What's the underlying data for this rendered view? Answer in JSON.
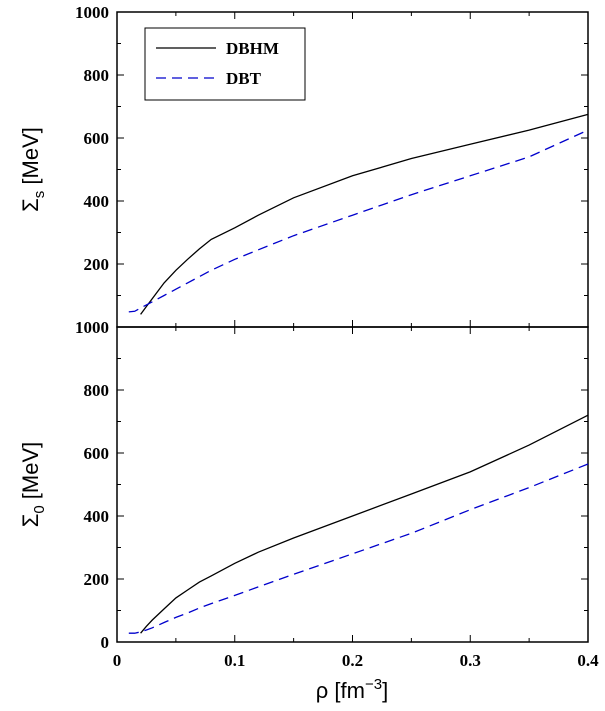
{
  "chart_data": {
    "type": "line",
    "legend_placement": "top-left",
    "x": [
      0.01,
      0.015,
      0.02,
      0.025,
      0.03,
      0.04,
      0.05,
      0.06,
      0.07,
      0.08,
      0.1,
      0.12,
      0.15,
      0.2,
      0.25,
      0.3,
      0.35,
      0.4
    ],
    "x_ticks": [
      "0",
      "0.1",
      "0.2",
      "0.3",
      "0.4"
    ],
    "xlabel_main": "ρ [fm",
    "xlabel_sup": "−3",
    "xlabel_close": "]",
    "xlim": [
      0,
      0.4
    ],
    "legend": [
      "DBHM",
      "DBT"
    ],
    "panels": [
      {
        "ylabel_main": "Σ",
        "ylabel_sub": "s",
        "ylabel_unit": "[MeV]",
        "ylim": [
          0,
          1000
        ],
        "y_ticks": [
          "200",
          "400",
          "600",
          "800",
          "1000"
        ],
        "series": [
          {
            "name": "DBHM",
            "color": "#000000",
            "dash": "solid",
            "values": [
              null,
              null,
              40,
              65,
              90,
              140,
              180,
              215,
              248,
              278,
              315,
              355,
              410,
              480,
              535,
              580,
              625,
              675
            ]
          },
          {
            "name": "DBT",
            "color": "#0000cc",
            "dash": "dashed",
            "values": [
              48,
              50,
              60,
              70,
              80,
              100,
              120,
              140,
              160,
              180,
              215,
              245,
              290,
              355,
              420,
              480,
              540,
              625
            ]
          }
        ]
      },
      {
        "ylabel_main": "Σ",
        "ylabel_sub": "0",
        "ylabel_unit": "[MeV]",
        "ylim": [
          0,
          1000
        ],
        "y_ticks": [
          "0",
          "200",
          "400",
          "600",
          "800",
          "1000"
        ],
        "series": [
          {
            "name": "DBHM",
            "color": "#000000",
            "dash": "solid",
            "values": [
              null,
              null,
              28,
              50,
              70,
              105,
              140,
              165,
              190,
              210,
              250,
              285,
              330,
              400,
              470,
              540,
              625,
              720
            ]
          },
          {
            "name": "DBT",
            "color": "#0000cc",
            "dash": "dashed",
            "values": [
              28,
              28,
              32,
              38,
              45,
              62,
              78,
              92,
              108,
              122,
              148,
              175,
              215,
              280,
              345,
              420,
              490,
              565
            ]
          }
        ]
      }
    ]
  }
}
